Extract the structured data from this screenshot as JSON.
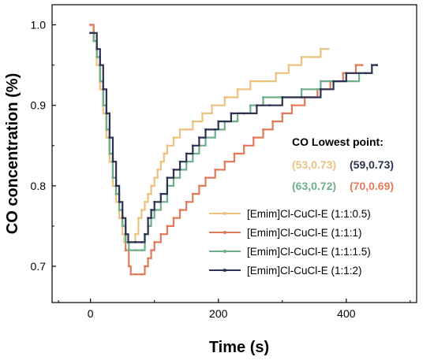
{
  "chart_data": {
    "type": "line",
    "title": "",
    "xlabel": "Time (s)",
    "ylabel": "CO concentration (%)",
    "xlim": [
      -60,
      510
    ],
    "ylim": [
      0.655,
      1.025
    ],
    "xticks": [
      0,
      200,
      400
    ],
    "yticks": [
      0.7,
      0.8,
      0.9,
      1.0
    ],
    "xtick_labels": [
      "0",
      "200",
      "400"
    ],
    "ytick_labels": [
      "0.7",
      "0.8",
      "0.9",
      "1.0"
    ],
    "legend_position": "bottom-right",
    "series": [
      {
        "name": "[Emim]Cl-CuCl-E (1:1:0.5)",
        "color": "#EDC27F",
        "points": [
          [
            0,
            1.0
          ],
          [
            5,
            0.98
          ],
          [
            10,
            0.95
          ],
          [
            15,
            0.92
          ],
          [
            20,
            0.89
          ],
          [
            25,
            0.86
          ],
          [
            30,
            0.83
          ],
          [
            35,
            0.8
          ],
          [
            40,
            0.78
          ],
          [
            45,
            0.76
          ],
          [
            50,
            0.74
          ],
          [
            53,
            0.73
          ],
          [
            60,
            0.73
          ],
          [
            70,
            0.74
          ],
          [
            75,
            0.76
          ],
          [
            80,
            0.77
          ],
          [
            85,
            0.78
          ],
          [
            90,
            0.79
          ],
          [
            95,
            0.8
          ],
          [
            100,
            0.81
          ],
          [
            105,
            0.82
          ],
          [
            110,
            0.83
          ],
          [
            115,
            0.84
          ],
          [
            120,
            0.85
          ],
          [
            130,
            0.86
          ],
          [
            140,
            0.87
          ],
          [
            150,
            0.87
          ],
          [
            160,
            0.88
          ],
          [
            175,
            0.89
          ],
          [
            190,
            0.9
          ],
          [
            210,
            0.91
          ],
          [
            230,
            0.92
          ],
          [
            250,
            0.93
          ],
          [
            270,
            0.93
          ],
          [
            290,
            0.94
          ],
          [
            310,
            0.95
          ],
          [
            330,
            0.96
          ],
          [
            350,
            0.96
          ],
          [
            360,
            0.97
          ],
          [
            372,
            0.97
          ]
        ]
      },
      {
        "name": "[Emim]Cl-CuCl-E (1:1:1)",
        "color": "#E27A5A",
        "points": [
          [
            0,
            1.0
          ],
          [
            5,
            0.98
          ],
          [
            10,
            0.96
          ],
          [
            15,
            0.93
          ],
          [
            20,
            0.9
          ],
          [
            25,
            0.87
          ],
          [
            30,
            0.84
          ],
          [
            35,
            0.81
          ],
          [
            40,
            0.79
          ],
          [
            45,
            0.77
          ],
          [
            50,
            0.75
          ],
          [
            55,
            0.72
          ],
          [
            60,
            0.7
          ],
          [
            63,
            0.69
          ],
          [
            70,
            0.69
          ],
          [
            80,
            0.69
          ],
          [
            85,
            0.7
          ],
          [
            90,
            0.71
          ],
          [
            95,
            0.72
          ],
          [
            100,
            0.73
          ],
          [
            110,
            0.74
          ],
          [
            120,
            0.75
          ],
          [
            130,
            0.76
          ],
          [
            140,
            0.77
          ],
          [
            150,
            0.78
          ],
          [
            160,
            0.79
          ],
          [
            170,
            0.8
          ],
          [
            180,
            0.81
          ],
          [
            195,
            0.82
          ],
          [
            210,
            0.83
          ],
          [
            225,
            0.84
          ],
          [
            240,
            0.85
          ],
          [
            255,
            0.86
          ],
          [
            270,
            0.87
          ],
          [
            285,
            0.88
          ],
          [
            300,
            0.89
          ],
          [
            315,
            0.9
          ],
          [
            335,
            0.91
          ],
          [
            355,
            0.92
          ],
          [
            375,
            0.93
          ],
          [
            395,
            0.94
          ],
          [
            415,
            0.95
          ],
          [
            425,
            0.95
          ]
        ]
      },
      {
        "name": "[Emim]Cl-CuCl-E (1:1:1.5)",
        "color": "#6DAE8B",
        "points": [
          [
            0,
            0.99
          ],
          [
            5,
            0.98
          ],
          [
            10,
            0.96
          ],
          [
            15,
            0.93
          ],
          [
            20,
            0.9
          ],
          [
            25,
            0.87
          ],
          [
            30,
            0.84
          ],
          [
            35,
            0.81
          ],
          [
            40,
            0.79
          ],
          [
            45,
            0.77
          ],
          [
            50,
            0.75
          ],
          [
            55,
            0.73
          ],
          [
            60,
            0.72
          ],
          [
            70,
            0.72
          ],
          [
            80,
            0.72
          ],
          [
            85,
            0.74
          ],
          [
            90,
            0.75
          ],
          [
            95,
            0.76
          ],
          [
            100,
            0.77
          ],
          [
            110,
            0.78
          ],
          [
            120,
            0.8
          ],
          [
            130,
            0.81
          ],
          [
            140,
            0.82
          ],
          [
            150,
            0.83
          ],
          [
            160,
            0.84
          ],
          [
            170,
            0.85
          ],
          [
            180,
            0.86
          ],
          [
            195,
            0.87
          ],
          [
            210,
            0.88
          ],
          [
            230,
            0.89
          ],
          [
            250,
            0.9
          ],
          [
            270,
            0.91
          ],
          [
            300,
            0.91
          ],
          [
            330,
            0.92
          ],
          [
            360,
            0.93
          ],
          [
            390,
            0.93
          ],
          [
            420,
            0.94
          ],
          [
            440,
            0.94
          ]
        ]
      },
      {
        "name": "[Emim]Cl-CuCl-E (1:1:2)",
        "color": "#2C3352",
        "points": [
          [
            0,
            0.99
          ],
          [
            5,
            0.99
          ],
          [
            10,
            0.97
          ],
          [
            15,
            0.95
          ],
          [
            20,
            0.92
          ],
          [
            25,
            0.89
          ],
          [
            30,
            0.86
          ],
          [
            35,
            0.83
          ],
          [
            40,
            0.8
          ],
          [
            45,
            0.78
          ],
          [
            50,
            0.76
          ],
          [
            55,
            0.74
          ],
          [
            59,
            0.73
          ],
          [
            70,
            0.73
          ],
          [
            80,
            0.73
          ],
          [
            85,
            0.74
          ],
          [
            90,
            0.76
          ],
          [
            95,
            0.77
          ],
          [
            100,
            0.78
          ],
          [
            110,
            0.79
          ],
          [
            120,
            0.81
          ],
          [
            130,
            0.82
          ],
          [
            140,
            0.83
          ],
          [
            150,
            0.84
          ],
          [
            160,
            0.85
          ],
          [
            170,
            0.86
          ],
          [
            180,
            0.87
          ],
          [
            200,
            0.88
          ],
          [
            220,
            0.89
          ],
          [
            240,
            0.89
          ],
          [
            260,
            0.9
          ],
          [
            280,
            0.9
          ],
          [
            300,
            0.91
          ],
          [
            330,
            0.91
          ],
          [
            360,
            0.92
          ],
          [
            380,
            0.93
          ],
          [
            400,
            0.94
          ],
          [
            430,
            0.94
          ],
          [
            440,
            0.95
          ],
          [
            448,
            0.95
          ]
        ]
      }
    ],
    "annotation": {
      "title": "CO Lowest point:",
      "items": [
        {
          "text": "(53,0.73)",
          "color": "#EDC27F"
        },
        {
          "text": "(59,0.73)",
          "color": "#2C3352"
        },
        {
          "text": "(63,0.72)",
          "color": "#6DAE8B"
        },
        {
          "text": "(70,0.69)",
          "color": "#E27A5A"
        }
      ]
    }
  }
}
